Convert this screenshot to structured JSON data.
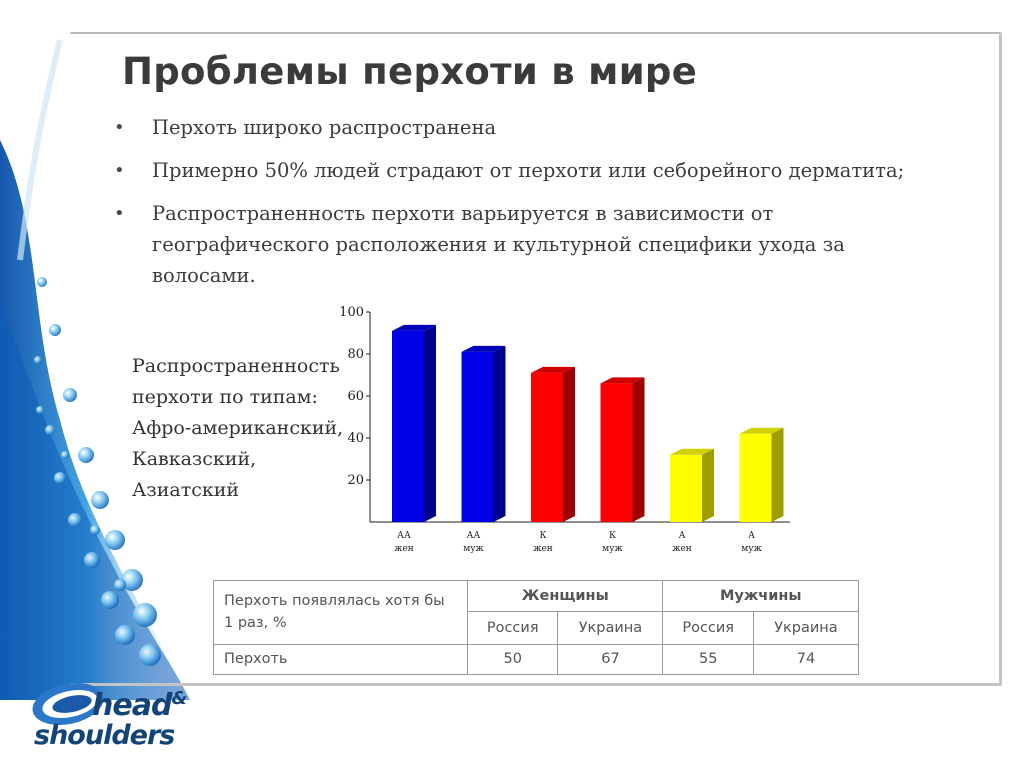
{
  "slide": {
    "title": "Проблемы перхоти в мире",
    "bullets": [
      "Перхоть широко распространена",
      "Примерно 50% людей страдают от перхоти или себорейного дерматита;",
      "Распространенность перхоти варьируется в зависимости от географического расположения и культурной специфики ухода за волосами."
    ],
    "types_caption": [
      "Распространенность",
      "перхоти по типам:",
      "Афро-американский,",
      "Кавказский,",
      "Азиатский"
    ]
  },
  "chart_data": {
    "type": "bar",
    "categories": [
      [
        "АА",
        "жен"
      ],
      [
        "АА",
        "муж"
      ],
      [
        "К",
        "жен"
      ],
      [
        "К",
        "муж"
      ],
      [
        "А",
        "жен"
      ],
      [
        "А",
        "муж"
      ]
    ],
    "values": [
      91,
      81,
      71,
      66,
      32,
      42
    ],
    "colors": [
      "#0000e6",
      "#0000e6",
      "#ff0000",
      "#ff0000",
      "#ffff00",
      "#ffff00"
    ],
    "y_ticks": [
      20,
      40,
      60,
      80,
      100
    ],
    "ylim": [
      0,
      100
    ],
    "grid": false,
    "style": "3d"
  },
  "table": {
    "header_label": "Перхоть появлялась хотя бы 1 раз, %",
    "groups": [
      "Женщины",
      "Мужчины"
    ],
    "subheaders": [
      "Россия",
      "Украина",
      "Россия",
      "Украина"
    ],
    "row_label": "Перхоть",
    "values": [
      "50",
      "67",
      "55",
      "74"
    ]
  },
  "logo": {
    "line1": "head",
    "amp": "&",
    "line2": "shoulders"
  },
  "colors": {
    "accent_blue": "#12447a",
    "frame": "#c4c4c4"
  }
}
